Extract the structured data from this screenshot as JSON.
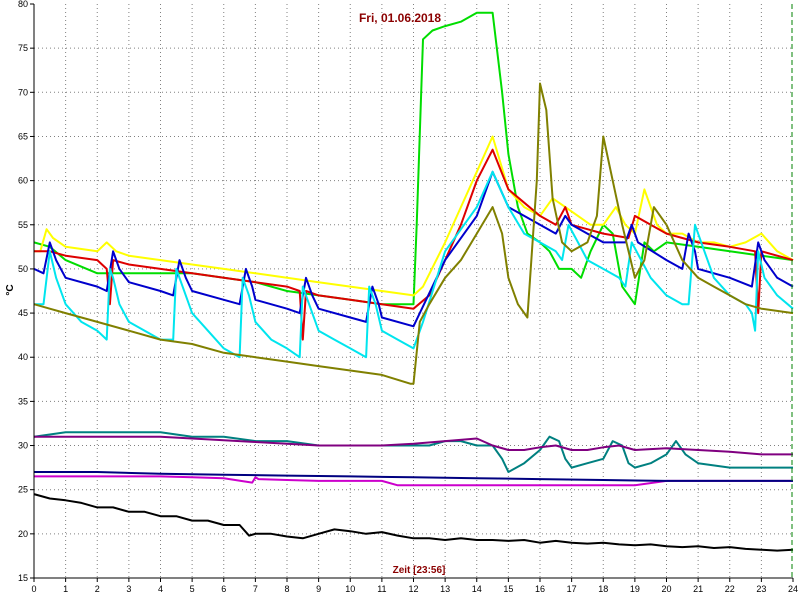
{
  "chart_data": {
    "type": "line",
    "title": "Fri, 01.06.2018",
    "xlabel": "Zeit [23:56]",
    "ylabel": "°C",
    "xlim": [
      0,
      24
    ],
    "ylim": [
      15,
      80
    ],
    "x_ticks": [
      0,
      1,
      2,
      3,
      4,
      5,
      6,
      7,
      8,
      9,
      10,
      11,
      12,
      13,
      14,
      15,
      16,
      17,
      18,
      19,
      20,
      21,
      22,
      23,
      24
    ],
    "y_ticks": [
      15,
      20,
      25,
      30,
      35,
      40,
      45,
      50,
      55,
      60,
      65,
      70,
      75,
      80
    ],
    "grid": true,
    "legend": "none",
    "colors": {
      "title": "#8b0000",
      "xlabel": "#8b0000",
      "grid": "#808080",
      "current_time_marker": "#008000"
    },
    "series": [
      {
        "color": "#00dd00",
        "x": [
          0,
          0.5,
          1,
          2,
          3,
          4,
          5,
          6,
          7,
          8,
          9,
          10,
          11,
          12,
          12.1,
          12.3,
          12.6,
          13,
          13.5,
          14,
          14.5,
          14.8,
          15,
          15.3,
          15.6,
          15.8,
          16,
          16.3,
          16.6,
          17,
          17.3,
          17.6,
          18,
          18.3,
          18.6,
          19,
          19.3,
          19.6,
          20,
          21,
          22,
          23,
          24
        ],
        "y": [
          53,
          52.5,
          51,
          49.5,
          49.5,
          49.5,
          49.5,
          49,
          48.5,
          47.5,
          47,
          46.5,
          46,
          46,
          55,
          76,
          77,
          77.5,
          78,
          79,
          79,
          70,
          63,
          57,
          54,
          53.5,
          53,
          52,
          50,
          50,
          49,
          52,
          55,
          54,
          48,
          46,
          53,
          52,
          53,
          52.5,
          52,
          51.5,
          51
        ]
      },
      {
        "color": "#ffff00",
        "x": [
          0,
          0.2,
          0.4,
          0.6,
          1,
          2,
          2.3,
          2.6,
          3,
          4,
          5,
          6,
          7,
          8,
          9,
          10,
          11,
          12,
          12.3,
          13,
          13.5,
          14,
          14.5,
          15,
          15.5,
          16,
          16.4,
          16.8,
          17.2,
          17.6,
          18,
          18.4,
          18.7,
          19,
          19.3,
          19.7,
          20,
          20.5,
          21,
          21.5,
          22,
          22.5,
          23,
          23.5,
          24
        ],
        "y": [
          52,
          52,
          54.5,
          53.5,
          52.5,
          52,
          53,
          52,
          51.5,
          51,
          50.5,
          50,
          49.5,
          49,
          48.5,
          48,
          47.5,
          47,
          48,
          53,
          57,
          61,
          65,
          59,
          57,
          56,
          58,
          57,
          56,
          55,
          55,
          57,
          55,
          54,
          59,
          55,
          54,
          54,
          53,
          53,
          52.5,
          53,
          54,
          52,
          51
        ]
      },
      {
        "color": "#dd0000",
        "x": [
          0,
          0.5,
          1,
          2,
          2.3,
          2.4,
          2.5,
          3,
          4,
          5,
          6,
          7,
          8,
          8.4,
          8.5,
          8.6,
          9,
          10,
          11,
          12,
          12.5,
          13,
          13.5,
          14,
          14.5,
          15,
          15.5,
          16,
          16.5,
          16.8,
          17,
          17.5,
          18,
          18.8,
          19,
          20,
          21,
          22,
          22.8,
          22.9,
          23,
          23.5,
          24
        ],
        "y": [
          52,
          52,
          51.5,
          51,
          50,
          46,
          51,
          50.5,
          50,
          49.5,
          49,
          48.5,
          48,
          47.5,
          42,
          47.5,
          47,
          46.5,
          46,
          45.5,
          47,
          51,
          55,
          60,
          63.5,
          59,
          57.5,
          56,
          55,
          57,
          55,
          54.5,
          54,
          53.5,
          56,
          54,
          53,
          52.5,
          52,
          45,
          52,
          51.5,
          51
        ]
      },
      {
        "color": "#0000cc",
        "x": [
          0,
          0.3,
          0.5,
          0.7,
          1,
          2,
          2.3,
          2.5,
          2.7,
          3,
          4,
          4.4,
          4.6,
          4.8,
          5,
          6,
          6.5,
          6.7,
          6.9,
          7,
          8,
          8.4,
          8.6,
          8.8,
          9,
          10,
          10.5,
          10.7,
          10.9,
          11,
          12,
          12.2,
          13,
          14,
          14.5,
          15,
          15.5,
          16,
          16.5,
          16.8,
          17,
          17.5,
          18,
          18.7,
          18.9,
          19.1,
          20,
          20.5,
          20.7,
          20.9,
          21,
          22,
          22.7,
          22.9,
          23.1,
          23.5,
          24
        ],
        "y": [
          50,
          49.5,
          53,
          51,
          49,
          48,
          47.5,
          52,
          50,
          48.5,
          47.5,
          47,
          51,
          49,
          47.5,
          46.5,
          46,
          50,
          48,
          46.5,
          45.5,
          45,
          49,
          47,
          45.5,
          44.5,
          44,
          48,
          46,
          44.5,
          43.5,
          45,
          51,
          56,
          61,
          57,
          56,
          55,
          54,
          56,
          55,
          54,
          53,
          53,
          55,
          53,
          51,
          50,
          54,
          52,
          50,
          49,
          48,
          53,
          51,
          49,
          48
        ]
      },
      {
        "color": "#00e5ee",
        "x": [
          0,
          0.3,
          0.5,
          0.7,
          1,
          1.5,
          2,
          2.3,
          2.4,
          2.5,
          2.7,
          3,
          3.5,
          4,
          4.4,
          4.5,
          4.7,
          5,
          5.5,
          6,
          6.5,
          6.6,
          6.8,
          7,
          7.5,
          8,
          8.4,
          8.5,
          8.7,
          9,
          9.5,
          10,
          10.5,
          10.6,
          10.8,
          11,
          11.5,
          12,
          12.3,
          13,
          14,
          14.5,
          15,
          15.5,
          16,
          16.5,
          16.7,
          16.9,
          17.2,
          17.5,
          18,
          18.5,
          18.7,
          18.9,
          19.2,
          19.5,
          20,
          20.5,
          20.7,
          20.9,
          21.2,
          21.5,
          22,
          22.5,
          22.7,
          22.8,
          22.9,
          23.1,
          23.5,
          24
        ],
        "y": [
          46,
          46,
          52,
          49,
          46,
          44,
          43,
          42,
          50,
          49,
          46,
          44,
          43,
          42,
          42,
          50,
          48,
          45,
          43,
          41,
          40,
          49,
          47,
          44,
          42,
          41,
          40,
          48,
          46,
          43,
          42,
          41,
          40,
          48,
          46,
          43,
          42,
          41,
          44,
          52,
          57,
          61,
          57,
          54,
          53,
          52,
          51,
          55,
          53,
          51,
          50,
          49,
          48,
          53,
          51,
          49,
          47,
          46,
          46,
          55,
          52,
          49,
          47,
          46,
          45,
          43,
          52,
          49,
          47,
          45.5
        ]
      },
      {
        "color": "#808000",
        "x": [
          0,
          0.5,
          1,
          2,
          3,
          4,
          5,
          6,
          7,
          8,
          9,
          10,
          11,
          11.9,
          12,
          12.2,
          12.5,
          13,
          13.5,
          14,
          14.5,
          14.8,
          15,
          15.3,
          15.6,
          15.9,
          16,
          16.2,
          16.4,
          16.7,
          17,
          17.5,
          17.8,
          18,
          18.3,
          18.6,
          19,
          19.3,
          19.6,
          20,
          20.5,
          21,
          21.5,
          22,
          22.5,
          23,
          24
        ],
        "y": [
          46,
          45.5,
          45,
          44,
          43,
          42,
          41.5,
          40.5,
          40,
          39.5,
          39,
          38.5,
          38,
          37,
          37,
          44,
          46,
          49,
          51,
          54,
          57,
          54,
          49,
          46,
          44.5,
          60,
          71,
          68,
          58,
          53,
          52,
          53,
          56,
          65,
          60,
          55,
          49,
          51,
          57,
          55,
          51,
          49,
          48,
          47,
          46,
          45.5,
          45
        ]
      },
      {
        "color": "#008080",
        "x": [
          0,
          1,
          2,
          3,
          4,
          5,
          6,
          7,
          8,
          9,
          10,
          11,
          12,
          12.5,
          13,
          13.5,
          14,
          14.5,
          14.8,
          15,
          15.5,
          16,
          16.3,
          16.6,
          16.8,
          17,
          17.5,
          18,
          18.3,
          18.6,
          18.8,
          19,
          19.5,
          20,
          20.3,
          20.6,
          21,
          22,
          23,
          24
        ],
        "y": [
          31,
          31.5,
          31.5,
          31.5,
          31.5,
          31,
          31,
          30.5,
          30.5,
          30,
          30,
          30,
          30,
          30,
          30.5,
          30.5,
          30,
          30,
          28.5,
          27,
          28,
          29.5,
          31,
          30.5,
          28.5,
          27.5,
          28,
          28.5,
          30.5,
          30,
          28,
          27.5,
          28,
          29,
          30.5,
          29,
          28,
          27.5,
          27.5,
          27.5
        ]
      },
      {
        "color": "#800080",
        "x": [
          0,
          1,
          2,
          3,
          4,
          5,
          6,
          7,
          8,
          9,
          10,
          11,
          12,
          13,
          14,
          14.5,
          15,
          15.5,
          16,
          16.5,
          17,
          17.5,
          18,
          18.5,
          19,
          19.5,
          20,
          21,
          22,
          23,
          24
        ],
        "y": [
          31,
          31,
          31,
          31,
          31,
          30.8,
          30.6,
          30.4,
          30.2,
          30,
          30,
          30,
          30.2,
          30.5,
          30.8,
          30,
          29.5,
          29.5,
          29.8,
          30,
          29.5,
          29.5,
          29.8,
          30,
          29.5,
          29.6,
          29.7,
          29.5,
          29.3,
          29,
          29
        ]
      },
      {
        "color": "#cc00cc",
        "x": [
          0,
          1,
          2,
          3,
          4,
          5,
          6,
          6.9,
          7,
          7.1,
          8,
          9,
          10,
          11,
          11.5,
          12,
          12.5,
          13,
          14,
          15,
          16,
          17,
          18,
          19,
          20,
          21,
          22,
          23,
          24
        ],
        "y": [
          26.5,
          26.5,
          26.5,
          26.5,
          26.5,
          26.4,
          26.3,
          25.8,
          26.4,
          26.2,
          26.1,
          26,
          26,
          26,
          25.5,
          25.5,
          25.5,
          25.5,
          25.5,
          25.5,
          25.5,
          25.5,
          25.5,
          25.5,
          26,
          26,
          26,
          26,
          26
        ]
      },
      {
        "color": "#000080",
        "x": [
          0,
          2,
          4,
          6,
          8,
          10,
          12,
          14,
          16,
          18,
          20,
          22,
          24
        ],
        "y": [
          27,
          27,
          26.8,
          26.7,
          26.6,
          26.5,
          26.4,
          26.3,
          26.2,
          26.1,
          26,
          26,
          26
        ]
      },
      {
        "color": "#000000",
        "x": [
          0,
          0.5,
          1,
          1.5,
          2,
          2.5,
          3,
          3.5,
          4,
          4.5,
          5,
          5.5,
          6,
          6.5,
          6.8,
          7,
          7.5,
          8,
          8.5,
          9,
          9.5,
          10,
          10.5,
          11,
          11.5,
          12,
          12.5,
          13,
          13.5,
          14,
          14.5,
          15,
          15.5,
          16,
          16.5,
          17,
          17.5,
          18,
          18.5,
          19,
          19.5,
          20,
          20.5,
          21,
          21.5,
          22,
          22.5,
          23,
          23.5,
          24
        ],
        "y": [
          24.5,
          24,
          23.8,
          23.5,
          23,
          23,
          22.5,
          22.5,
          22,
          22,
          21.5,
          21.5,
          21,
          21,
          19.8,
          20,
          20,
          19.7,
          19.5,
          20,
          20.5,
          20.3,
          20,
          20.2,
          19.8,
          19.5,
          19.5,
          19.3,
          19.5,
          19.3,
          19.3,
          19.2,
          19.3,
          19,
          19.2,
          19,
          18.9,
          19,
          18.8,
          18.7,
          18.8,
          18.6,
          18.5,
          18.6,
          18.4,
          18.5,
          18.3,
          18.2,
          18.1,
          18.2
        ]
      }
    ]
  }
}
